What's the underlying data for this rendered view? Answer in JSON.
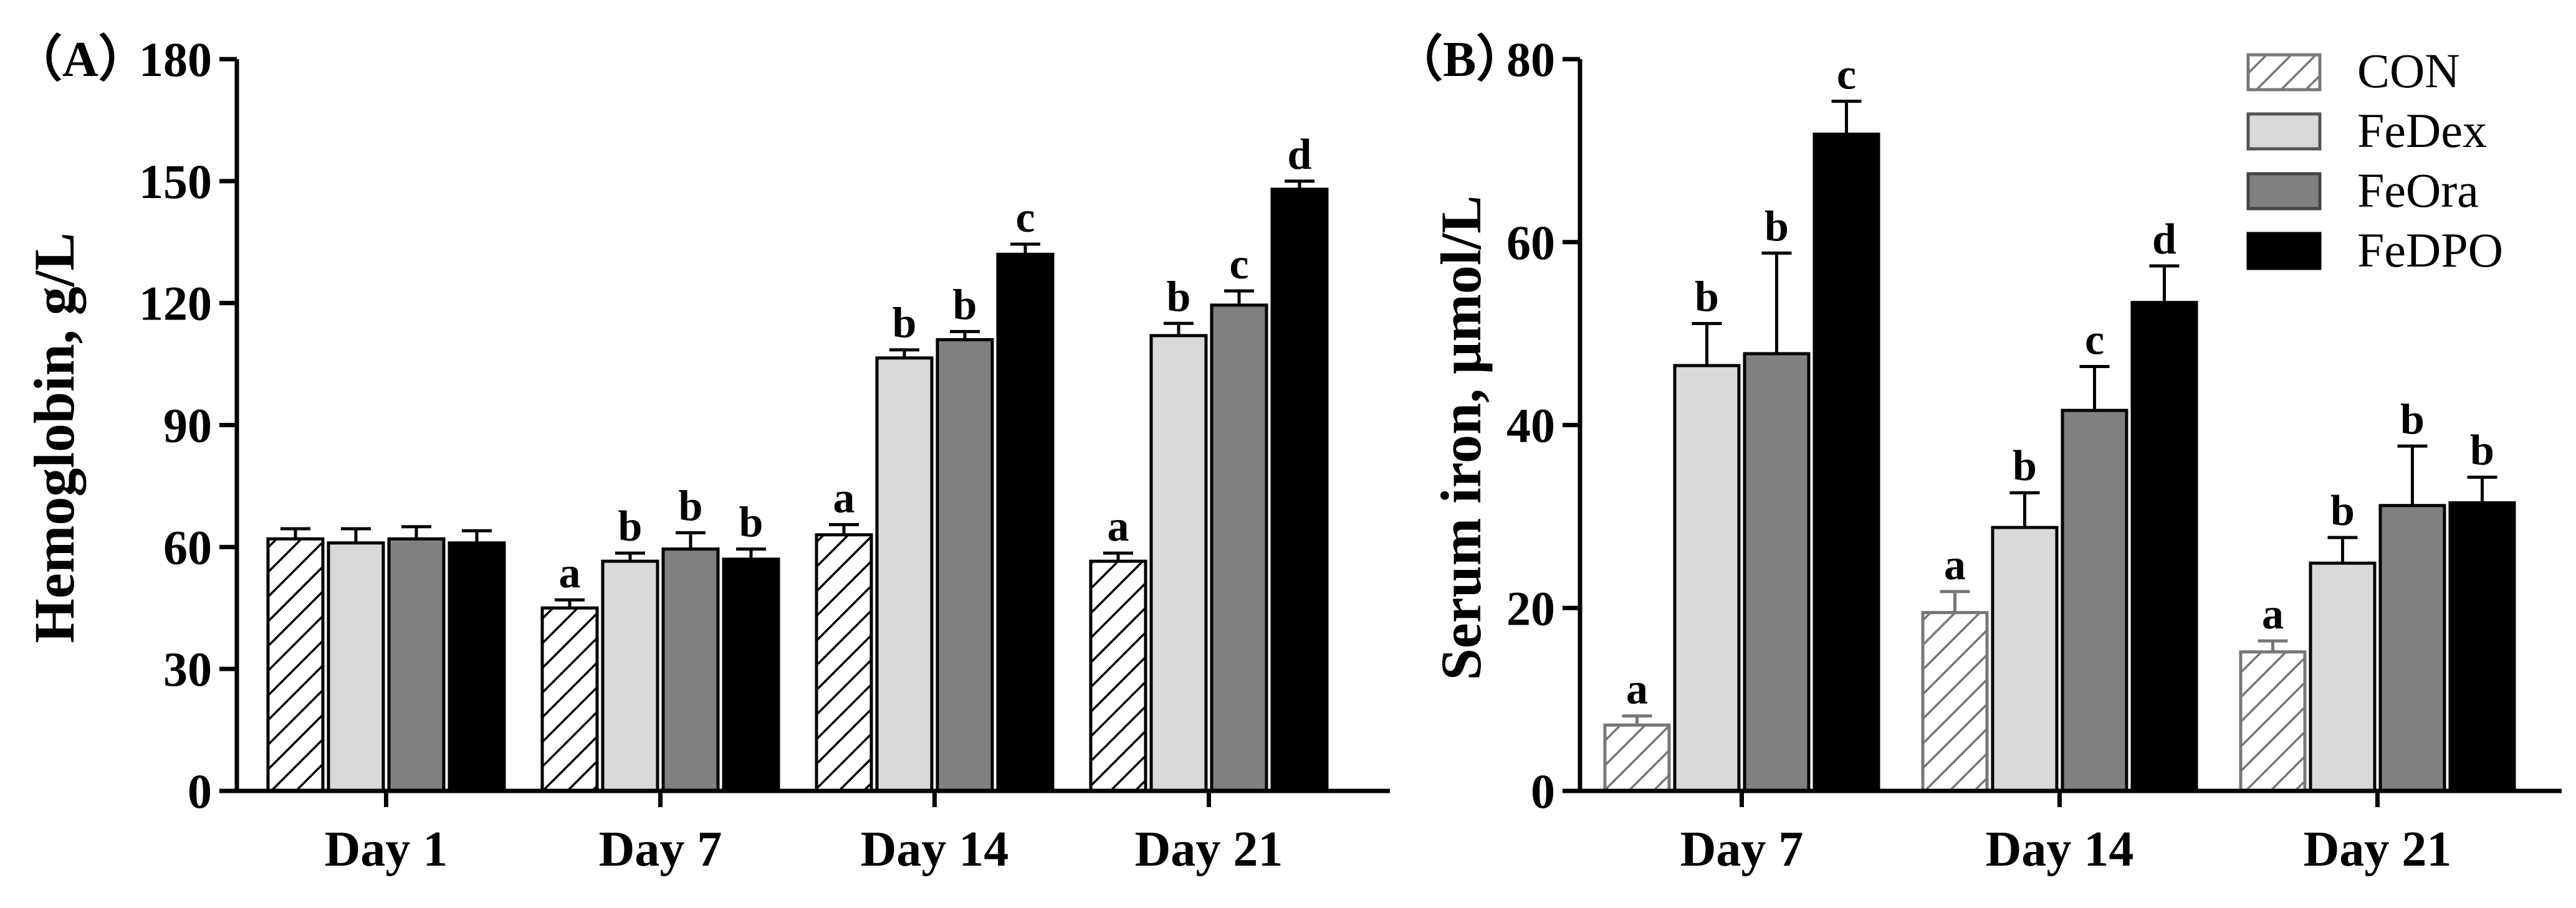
{
  "series_styles": [
    {
      "name": "CON",
      "fill": "hatch",
      "color": "#ffffff"
    },
    {
      "name": "FeDex",
      "fill": "solid",
      "color": "#d9d9d9"
    },
    {
      "name": "FeOra",
      "fill": "solid",
      "color": "#808080"
    },
    {
      "name": "FeDPO",
      "fill": "solid",
      "color": "#000000"
    }
  ],
  "chart_data": [
    {
      "type": "bar",
      "panel_label": "（A）",
      "title": "",
      "xlabel": "",
      "ylabel": "Hemoglobin, g/L",
      "ylim": [
        0,
        180
      ],
      "yticks": [
        "0",
        "30",
        "60",
        "90",
        "120",
        "150",
        "180"
      ],
      "categories": [
        "Day 1",
        "Day 7",
        "Day 14",
        "Day 21"
      ],
      "series": [
        {
          "name": "CON",
          "values": [
            62,
            45,
            63,
            56.5
          ],
          "errors": [
            2.5,
            2,
            2.5,
            2
          ],
          "labels": [
            "",
            "a",
            "a",
            "a"
          ]
        },
        {
          "name": "FeDex",
          "values": [
            61,
            56.5,
            106.5,
            112
          ],
          "errors": [
            3.5,
            2,
            2,
            3
          ],
          "labels": [
            "",
            "b",
            "b",
            "b"
          ]
        },
        {
          "name": "FeOra",
          "values": [
            62,
            59.5,
            111,
            119.5
          ],
          "errors": [
            3,
            4,
            2,
            3.5
          ],
          "labels": [
            "",
            "b",
            "b",
            "c"
          ]
        },
        {
          "name": "FeDPO",
          "values": [
            61,
            57,
            132,
            148
          ],
          "errors": [
            3,
            2.5,
            2.5,
            2
          ],
          "labels": [
            "",
            "b",
            "c",
            "d"
          ]
        }
      ]
    },
    {
      "type": "bar",
      "panel_label": "（B）",
      "title": "",
      "xlabel": "",
      "ylabel": "Serum iron, μmol/L",
      "ylim": [
        0,
        80
      ],
      "yticks": [
        "0",
        "20",
        "40",
        "60",
        "80"
      ],
      "categories": [
        "Day 7",
        "Day 14",
        "Day 21"
      ],
      "legend": {
        "position": "top-right",
        "entries": [
          "CON",
          "FeDex",
          "FeOra",
          "FeDPO"
        ]
      },
      "series": [
        {
          "name": "CON",
          "values": [
            7.2,
            19.5,
            15.2
          ],
          "errors": [
            1,
            2.3,
            1.2
          ],
          "labels": [
            "a",
            "a",
            "a"
          ]
        },
        {
          "name": "FeDex",
          "values": [
            46.5,
            28.8,
            24.9
          ],
          "errors": [
            4.6,
            3.8,
            2.8
          ],
          "labels": [
            "b",
            "b",
            "b"
          ]
        },
        {
          "name": "FeOra",
          "values": [
            47.8,
            41.6,
            31.2
          ],
          "errors": [
            11,
            4.8,
            6.5
          ],
          "labels": [
            "b",
            "c",
            "b"
          ]
        },
        {
          "name": "FeDPO",
          "values": [
            71.8,
            53.4,
            31.5
          ],
          "errors": [
            3.6,
            4,
            2.8
          ],
          "labels": [
            "c",
            "d",
            "b"
          ]
        }
      ]
    }
  ]
}
